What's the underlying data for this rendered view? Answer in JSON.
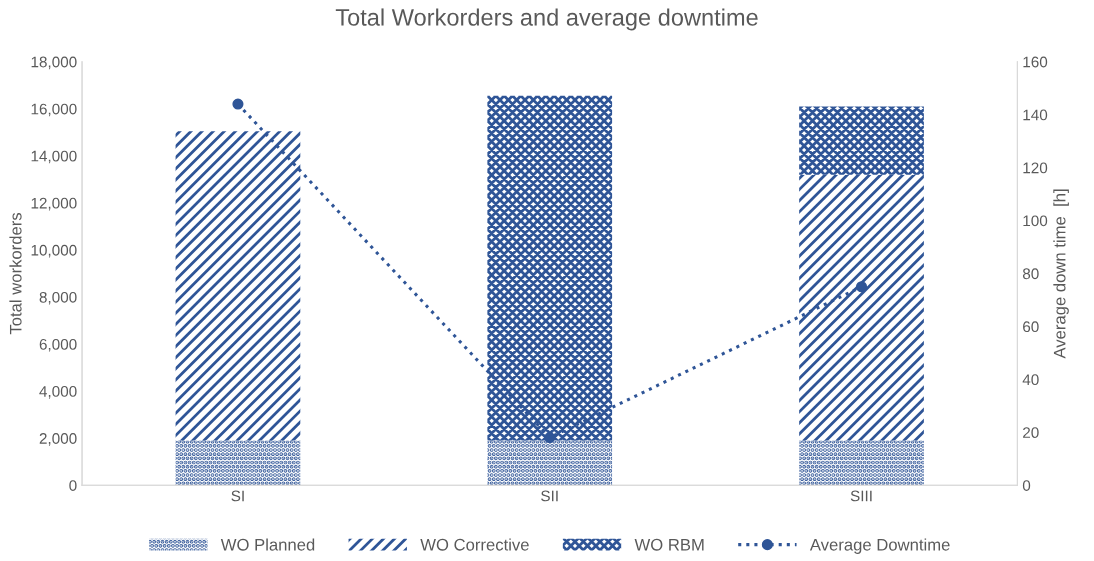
{
  "chart_data": {
    "type": "bar",
    "stacked": true,
    "title": "Total Workorders and average downtime",
    "ylabel": "Total workorders",
    "y2label": "Average down time  [h]",
    "categories": [
      "SI",
      "SII",
      "SIII"
    ],
    "series": [
      {
        "name": "WO Planned",
        "color": "#2f5597",
        "values": [
          1900,
          1900,
          1900
        ]
      },
      {
        "name": "WO Corrective",
        "color": "#2f5597",
        "values": [
          13150,
          null,
          11300
        ]
      },
      {
        "name": "WO RBM",
        "color": "#2f5597",
        "values": [
          null,
          14650,
          2900
        ]
      },
      {
        "name": "Average Downtime",
        "type": "line",
        "axis": "y2",
        "color": "#2f5597",
        "marker": "circle",
        "line_style": "dotted",
        "values": [
          144,
          18,
          75
        ]
      }
    ],
    "ylim": [
      0,
      18000
    ],
    "yticks": [
      {
        "value": 0,
        "label": "0"
      },
      {
        "value": 2000,
        "label": "2,000"
      },
      {
        "value": 4000,
        "label": "4,000"
      },
      {
        "value": 6000,
        "label": "6,000"
      },
      {
        "value": 8000,
        "label": "8,000"
      },
      {
        "value": 10000,
        "label": "10,000"
      },
      {
        "value": 12000,
        "label": "12,000"
      },
      {
        "value": 14000,
        "label": "14,000"
      },
      {
        "value": 16000,
        "label": "16,000"
      },
      {
        "value": 18000,
        "label": "18,000"
      }
    ],
    "y2lim": [
      0,
      160
    ],
    "y2ticks": [
      0,
      20,
      40,
      60,
      80,
      100,
      120,
      140,
      160
    ],
    "grid": false,
    "legend": "bottom"
  }
}
